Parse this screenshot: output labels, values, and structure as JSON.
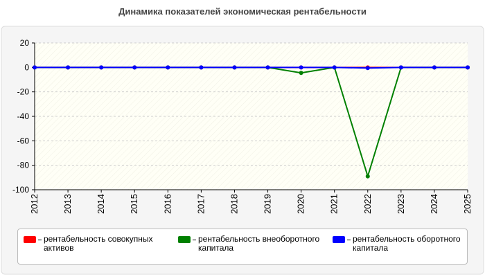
{
  "chart_data": {
    "type": "line",
    "title": "Динамика показателей экономическая рентабельности",
    "x": [
      "2012",
      "2013",
      "2014",
      "2015",
      "2016",
      "2017",
      "2018",
      "2019",
      "2020",
      "2021",
      "2022",
      "2023",
      "2024",
      "2025"
    ],
    "series": [
      {
        "name": "рентабельность совокупных активов",
        "color": "#ff0000",
        "values": [
          0,
          0,
          0,
          0,
          0,
          0,
          0,
          0,
          0,
          0,
          0,
          0,
          0,
          0
        ]
      },
      {
        "name": "рентабельность внеоборотного капитала",
        "color": "#008000",
        "values": [
          0,
          0,
          0,
          0,
          0,
          0,
          0,
          0,
          -4.5,
          0,
          -89,
          0,
          0,
          0
        ]
      },
      {
        "name": "рентабельность оборотного капитала",
        "color": "#0000ff",
        "values": [
          0,
          0,
          0,
          0,
          0,
          0,
          0,
          0,
          0,
          0,
          -0.5,
          0,
          0,
          0
        ]
      }
    ],
    "ylim": [
      -100,
      20
    ],
    "yticks": [
      -100,
      -80,
      -60,
      -40,
      -20,
      0,
      20
    ],
    "grid": true
  }
}
